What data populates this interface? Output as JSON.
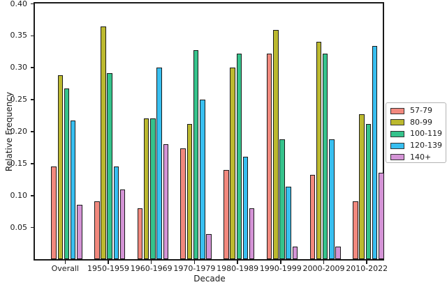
{
  "figure": {
    "background": "#ffffff",
    "text_color": "#1a1a1a",
    "bar_edge_color": "#1a1a1a"
  },
  "chart_data": {
    "type": "bar",
    "title": "",
    "xlabel": "Decade",
    "ylabel": "Relative Frequency",
    "categories": [
      "Overall",
      "1950-1959",
      "1960-1969",
      "1970-1979",
      "1980-1989",
      "1990-1999",
      "2000-2009",
      "2010-2022"
    ],
    "series": [
      {
        "name": "57-79",
        "color": "#F2897E",
        "values": [
          0.145,
          0.091,
          0.08,
          0.173,
          0.14,
          0.321,
          0.132,
          0.091
        ]
      },
      {
        "name": "80-99",
        "color": "#BCB92F",
        "values": [
          0.288,
          0.364,
          0.22,
          0.211,
          0.3,
          0.359,
          0.34,
          0.227
        ]
      },
      {
        "name": "100-119",
        "color": "#36C38C",
        "values": [
          0.267,
          0.291,
          0.22,
          0.327,
          0.321,
          0.188,
          0.321,
          0.212
        ]
      },
      {
        "name": "120-139",
        "color": "#38BFF0",
        "values": [
          0.217,
          0.145,
          0.3,
          0.25,
          0.16,
          0.113,
          0.188,
          0.333
        ]
      },
      {
        "name": "140+",
        "color": "#D494D6",
        "values": [
          0.085,
          0.109,
          0.18,
          0.039,
          0.08,
          0.02,
          0.02,
          0.135
        ]
      }
    ],
    "ylim": [
      0,
      0.4
    ],
    "y_ticks": [
      0.05,
      0.1,
      0.15,
      0.2,
      0.25,
      0.3,
      0.35,
      0.4
    ],
    "y_tick_labels": [
      "0.05",
      "0.10",
      "0.15",
      "0.20",
      "0.25",
      "0.30",
      "0.35",
      "0.40"
    ],
    "grid": false,
    "legend_position": "right-outside"
  }
}
